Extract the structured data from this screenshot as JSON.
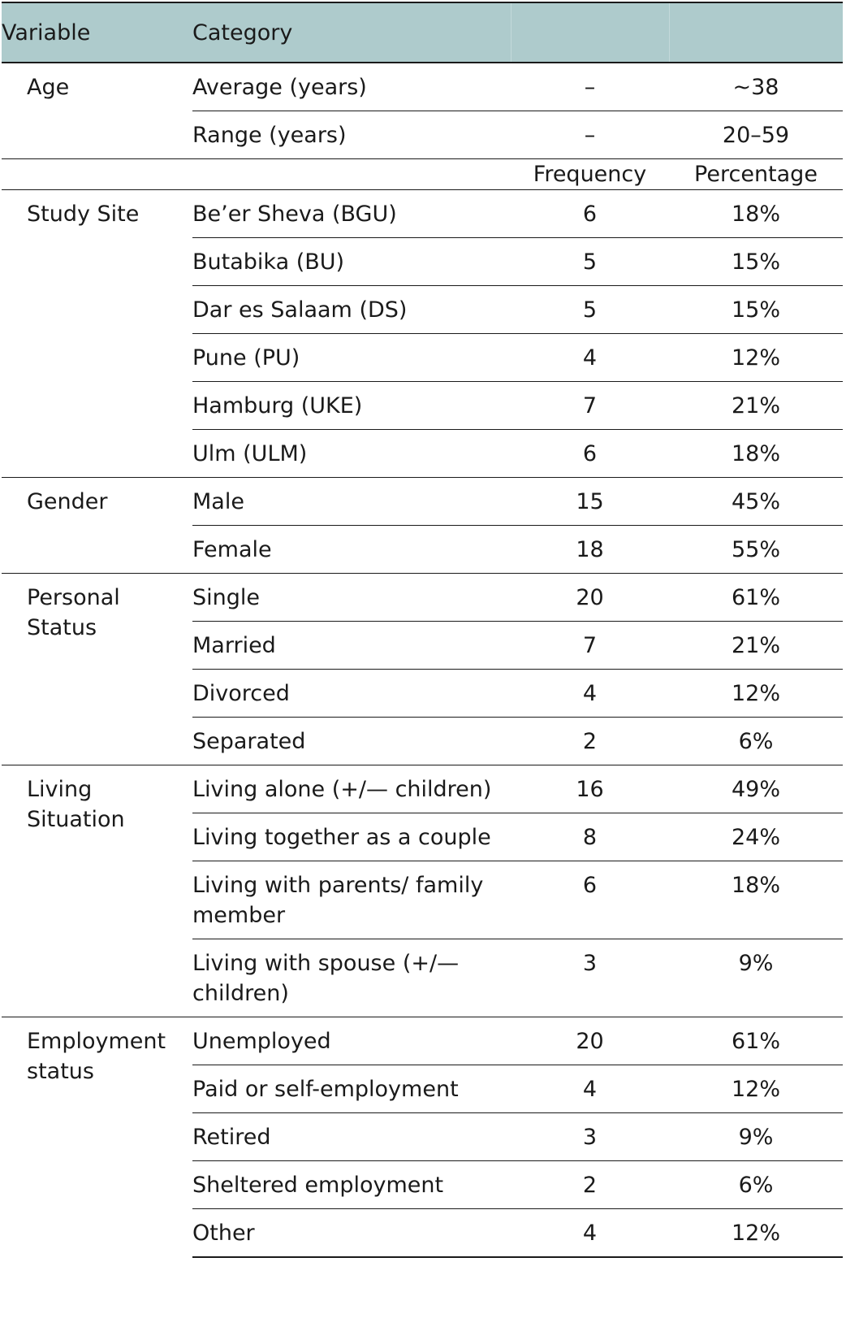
{
  "header": {
    "variable": "Variable",
    "category": "Category",
    "col3": "",
    "col4": ""
  },
  "age": {
    "label": "Age",
    "rows": [
      {
        "category": "Average (years)",
        "col3": "–",
        "col4": "~38"
      },
      {
        "category": "Range (years)",
        "col3": "–",
        "col4": "20–59"
      }
    ]
  },
  "subheader": {
    "frequency": "Frequency",
    "percentage": "Percentage"
  },
  "groups": [
    {
      "label": "Study Site",
      "rows": [
        {
          "category": "Be’er Sheva (BGU)",
          "frequency": "6",
          "percentage": "18%"
        },
        {
          "category": "Butabika (BU)",
          "frequency": "5",
          "percentage": "15%"
        },
        {
          "category": "Dar es Salaam (DS)",
          "frequency": "5",
          "percentage": "15%"
        },
        {
          "category": "Pune (PU)",
          "frequency": "4",
          "percentage": "12%"
        },
        {
          "category": "Hamburg (UKE)",
          "frequency": "7",
          "percentage": "21%"
        },
        {
          "category": "Ulm (ULM)",
          "frequency": "6",
          "percentage": "18%"
        }
      ]
    },
    {
      "label": "Gender",
      "rows": [
        {
          "category": "Male",
          "frequency": "15",
          "percentage": "45%"
        },
        {
          "category": "Female",
          "frequency": "18",
          "percentage": "55%"
        }
      ]
    },
    {
      "label": "Personal Status",
      "rows": [
        {
          "category": "Single",
          "frequency": "20",
          "percentage": "61%"
        },
        {
          "category": "Married",
          "frequency": "7",
          "percentage": "21%"
        },
        {
          "category": "Divorced",
          "frequency": "4",
          "percentage": "12%"
        },
        {
          "category": "Separated",
          "frequency": "2",
          "percentage": "6%"
        }
      ]
    },
    {
      "label": "Living Situation",
      "rows": [
        {
          "category": "Living alone (+/— children)",
          "frequency": "16",
          "percentage": "49%"
        },
        {
          "category": "Living together as a couple",
          "frequency": "8",
          "percentage": "24%"
        },
        {
          "category": "Living with parents/ family member",
          "frequency": "6",
          "percentage": "18%"
        },
        {
          "category": "Living with spouse (+/— children)",
          "frequency": "3",
          "percentage": "9%"
        }
      ]
    },
    {
      "label": "Employment status",
      "rows": [
        {
          "category": "Unemployed",
          "frequency": "20",
          "percentage": "61%"
        },
        {
          "category": "Paid or self-employment",
          "frequency": "4",
          "percentage": "12%"
        },
        {
          "category": "Retired",
          "frequency": "3",
          "percentage": "9%"
        },
        {
          "category": "Sheltered employment",
          "frequency": "2",
          "percentage": "6%"
        },
        {
          "category": "Other",
          "frequency": "4",
          "percentage": "12%"
        }
      ]
    }
  ]
}
